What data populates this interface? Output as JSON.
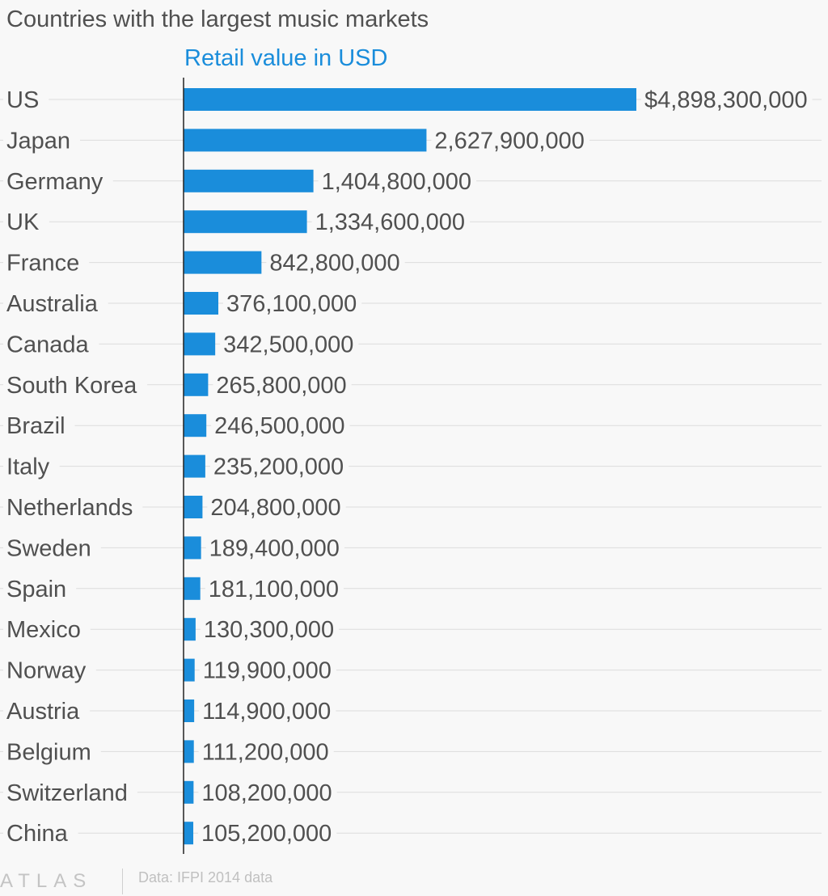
{
  "chart_data": {
    "type": "bar",
    "orientation": "horizontal",
    "title": "Countries with the largest music markets",
    "series_name": "Retail value in USD",
    "categories": [
      "US",
      "Japan",
      "Germany",
      "UK",
      "France",
      "Australia",
      "Canada",
      "South Korea",
      "Brazil",
      "Italy",
      "Netherlands",
      "Sweden",
      "Spain",
      "Mexico",
      "Norway",
      "Austria",
      "Belgium",
      "Switzerland",
      "China"
    ],
    "values": [
      4898300000,
      2627900000,
      1404800000,
      1334600000,
      842800000,
      376100000,
      342500000,
      265800000,
      246500000,
      235200000,
      204800000,
      189400000,
      181100000,
      130300000,
      119900000,
      114900000,
      111200000,
      108200000,
      105200000
    ],
    "value_labels": [
      "$4,898,300,000",
      "2,627,900,000",
      "1,404,800,000",
      "1,334,600,000",
      "842,800,000",
      "376,100,000",
      "342,500,000",
      "265,800,000",
      "246,500,000",
      "235,200,000",
      "204,800,000",
      "189,400,000",
      "181,100,000",
      "130,300,000",
      "119,900,000",
      "114,900,000",
      "111,200,000",
      "108,200,000",
      "105,200,000"
    ],
    "xlim": [
      0,
      4898300000
    ],
    "xlabel": "",
    "ylabel": "",
    "grid": true,
    "bar_color": "#1a8ddb"
  },
  "footer": {
    "logo": "ATLAS",
    "source": "Data: IFPI 2014 data"
  },
  "colors": {
    "bar": "#1a8ddb",
    "title": "#505050",
    "series_label": "#1a8ddb",
    "gridline": "#dcdcdc",
    "axis": "#222222"
  }
}
